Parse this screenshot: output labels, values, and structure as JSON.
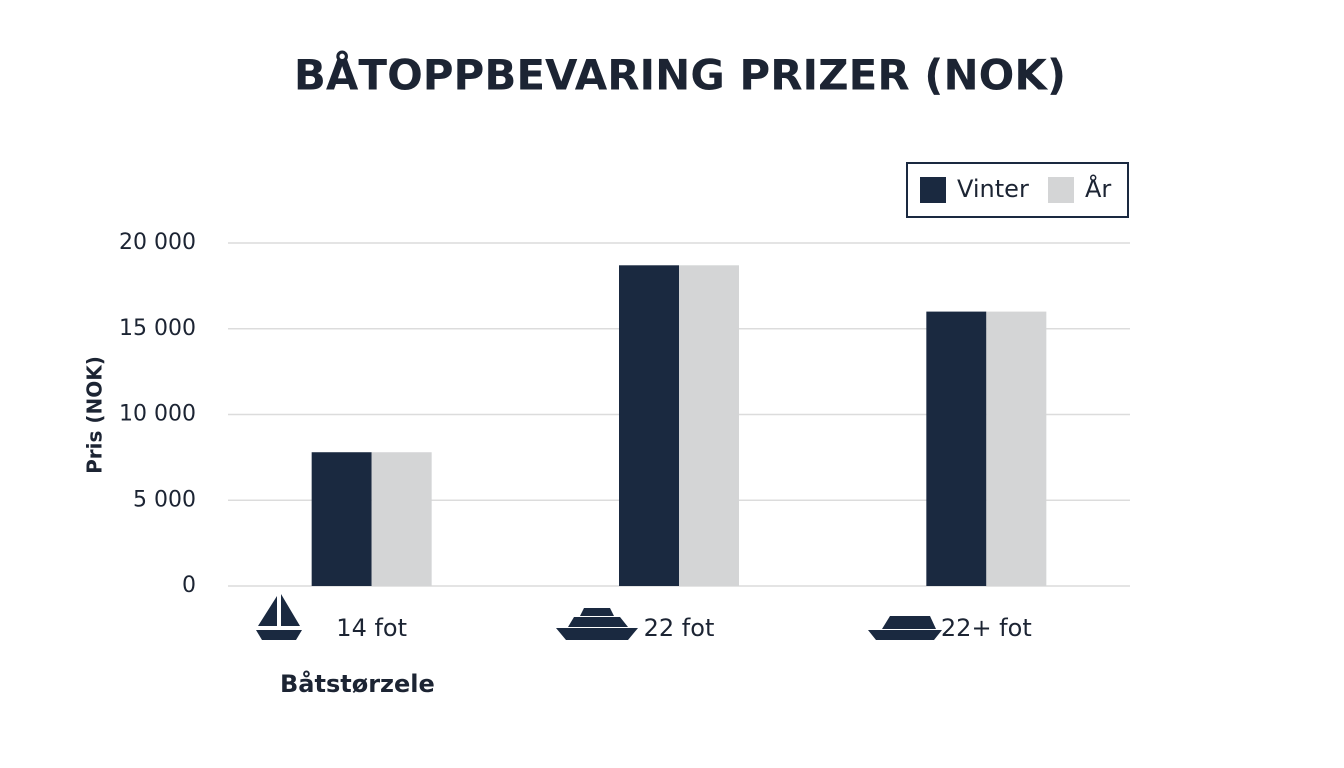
{
  "chart_data": {
    "type": "bar",
    "title": "BÅTOPPBEVARING PRIZER (NOK)",
    "x_label": "Båtstørzele",
    "y_label": "Pris (NOK)",
    "categories": [
      "14 fot",
      "22 fot",
      "22+ fot"
    ],
    "series": [
      {
        "name": "Vinter",
        "color": "#1a2940",
        "values": [
          7800,
          18700,
          16000
        ]
      },
      {
        "name": "År",
        "color": "#d4d5d6",
        "values": [
          7800,
          18700,
          16000
        ]
      }
    ],
    "ylim": [
      0,
      20000
    ],
    "yticks": [
      0,
      {
        "value": 5000,
        "label": "5 000"
      },
      {
        "value": 10000,
        "label": "10 000"
      },
      {
        "value": 15000,
        "label": "15 000"
      },
      {
        "value": 20000,
        "label": "20 000"
      }
    ],
    "grid": true,
    "legend": "top-right"
  }
}
